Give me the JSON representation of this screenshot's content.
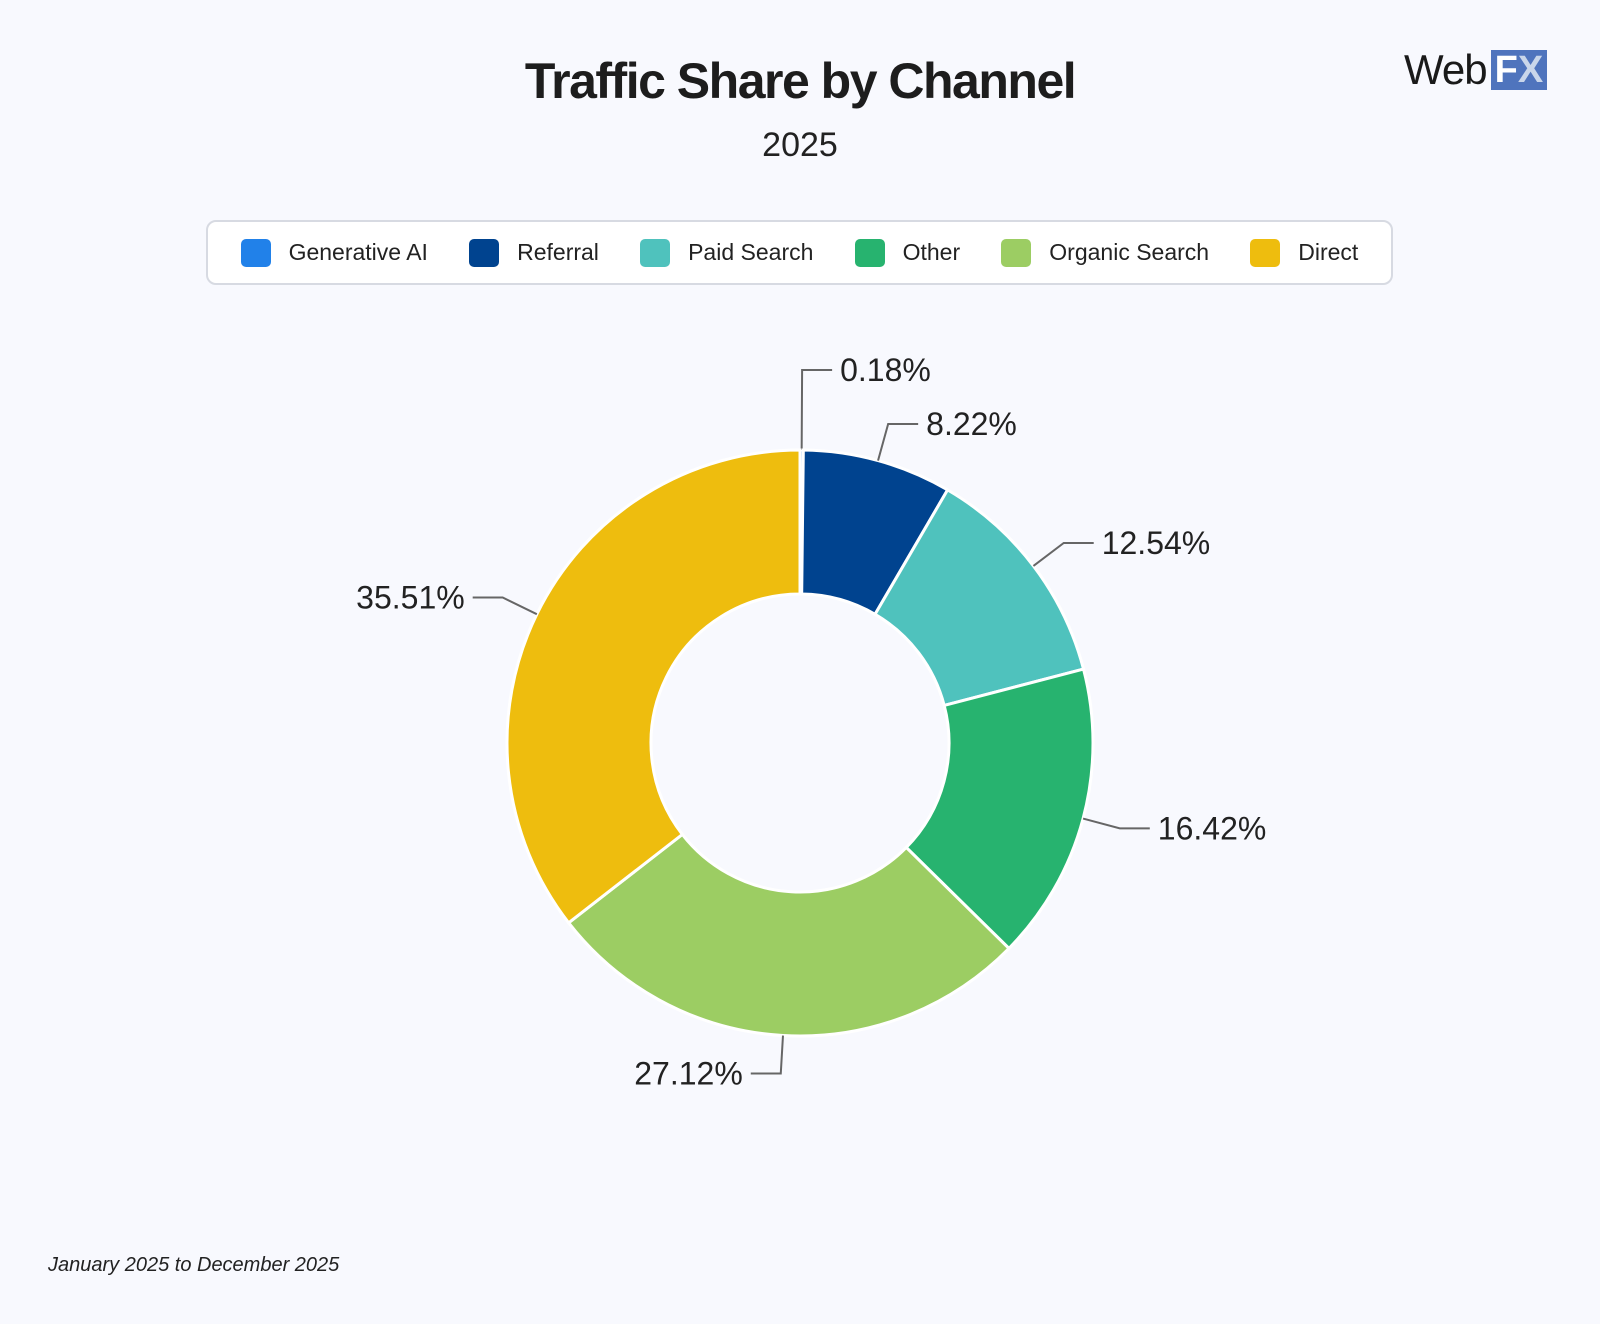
{
  "header": {
    "title": "Traffic Share by Channel",
    "subtitle": "2025"
  },
  "logo": {
    "text": "WebFX",
    "web": "Web",
    "fx_f": "F",
    "fx_x": "X"
  },
  "footer": {
    "date_range": "January 2025 to December 2025"
  },
  "chart_data": {
    "type": "pie",
    "variant": "donut",
    "title": "Traffic Share by Channel",
    "subtitle": "2025",
    "legend_position": "top",
    "categories": [
      "Generative AI",
      "Referral",
      "Paid Search",
      "Other",
      "Organic Search",
      "Direct"
    ],
    "values": [
      0.18,
      8.22,
      12.54,
      16.42,
      27.12,
      35.51
    ],
    "labels": [
      "0.18%",
      "8.22%",
      "12.54%",
      "16.42%",
      "27.12%",
      "35.51%"
    ],
    "colors": [
      "#2181e9",
      "#00438f",
      "#4fc2bd",
      "#27b36f",
      "#9ccd63",
      "#eebd0e"
    ]
  }
}
